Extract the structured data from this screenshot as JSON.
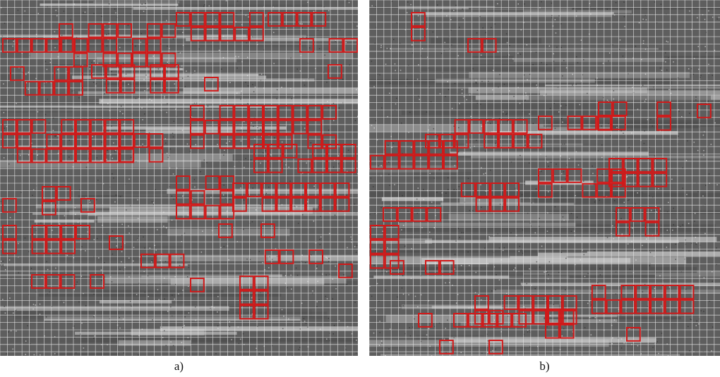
{
  "figure": {
    "panels": [
      {
        "id": "a",
        "label": "a)"
      },
      {
        "id": "b",
        "label": "b)"
      }
    ],
    "colors": {
      "grid_line": "#e6e6e6",
      "marker_box": "#d11919",
      "dark_texture": "#4f4f4f",
      "light_texture": "#c9c9c9"
    }
  }
}
